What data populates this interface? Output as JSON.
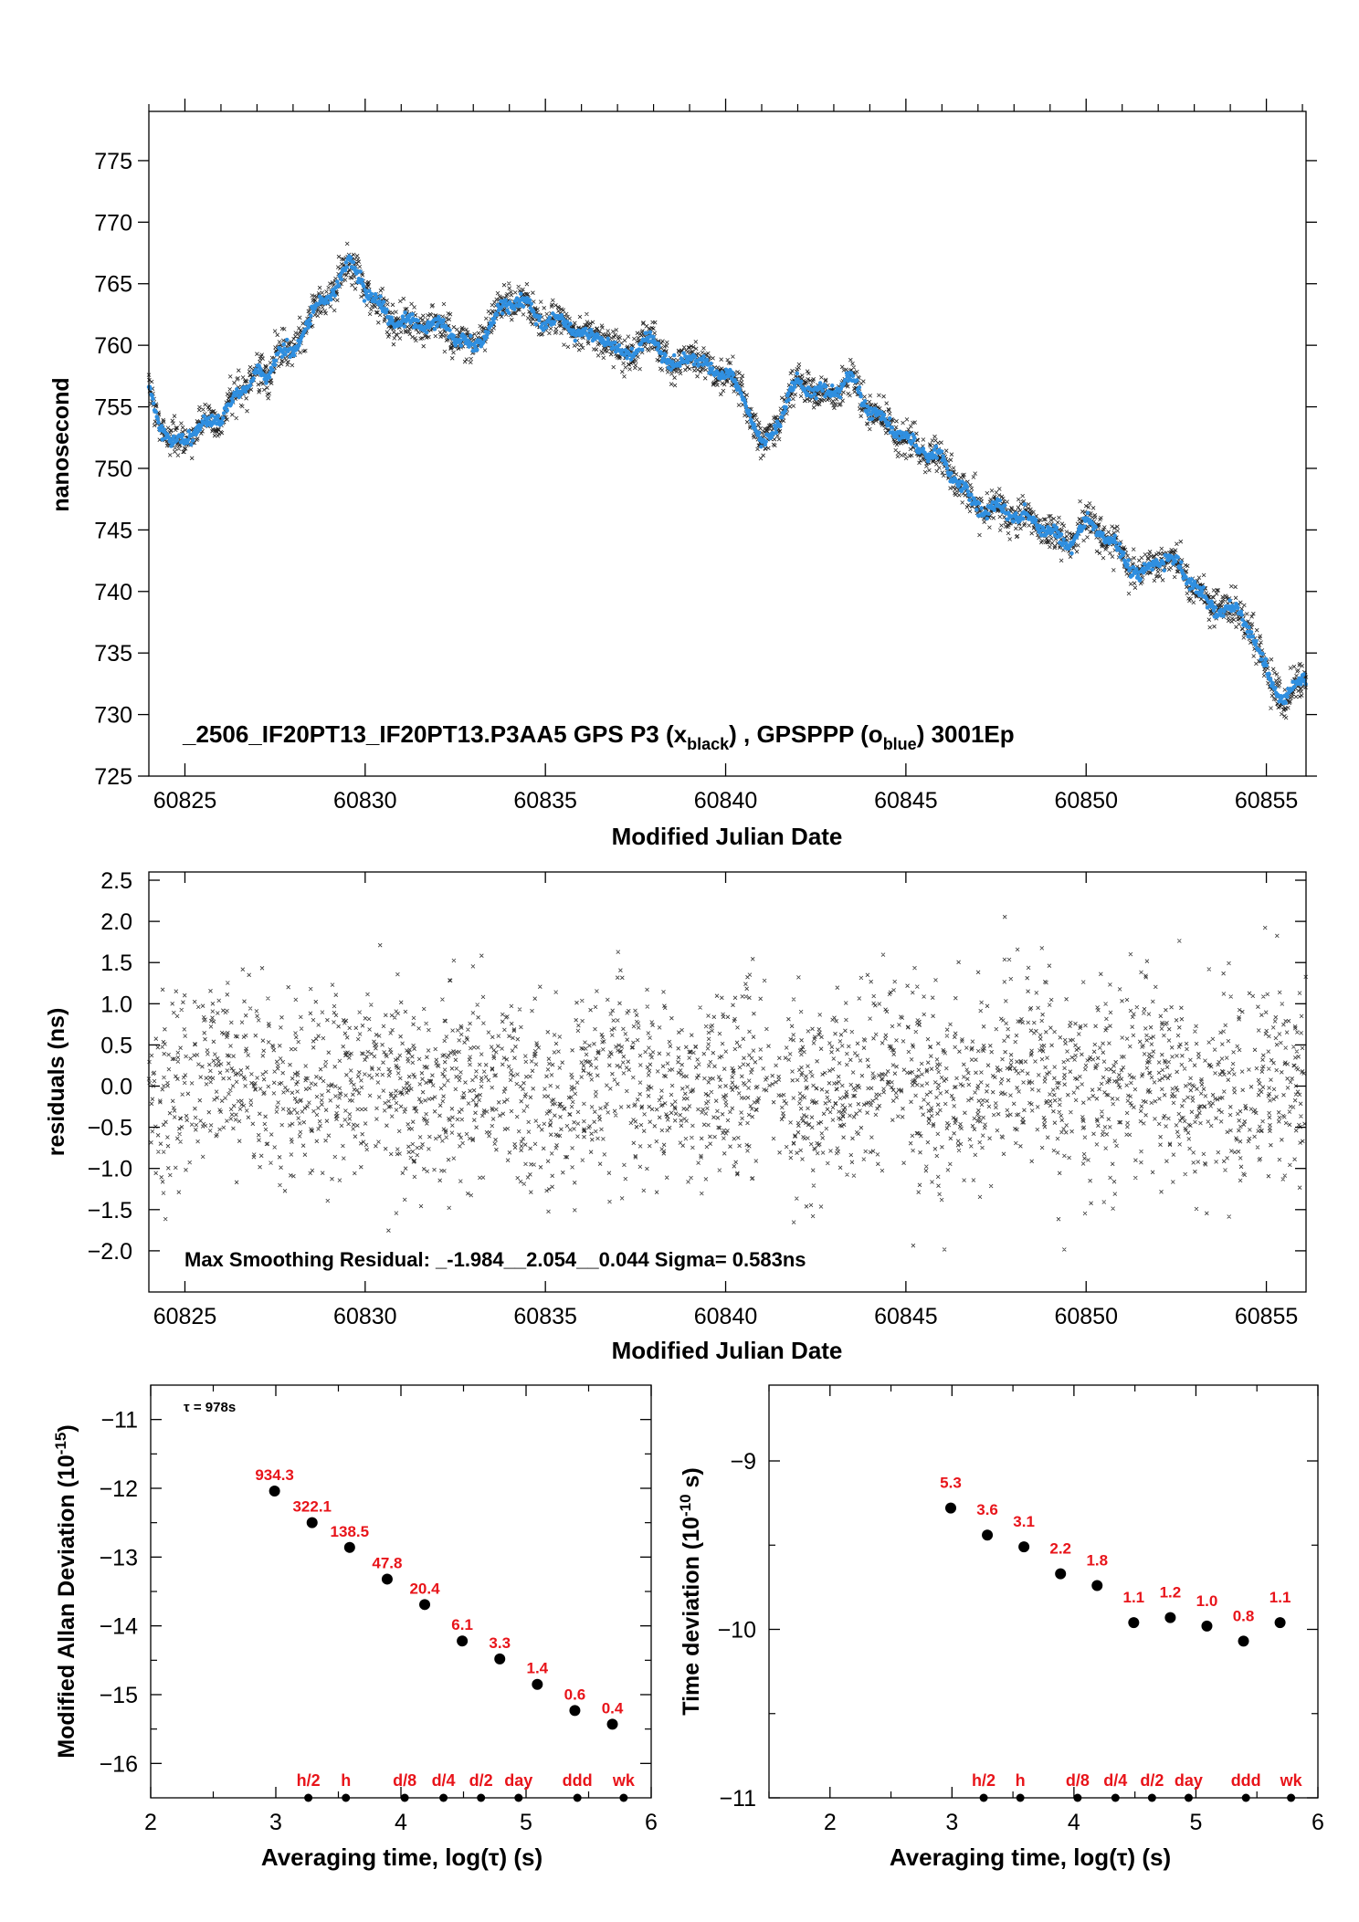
{
  "chart_data": [
    {
      "type": "scatter",
      "title": "_2506_IF20PT13_IF20PT13.P3AA5    GPS P3 (x",
      "title_sub_black": "black",
      "title_mid": ") ,  GPSPPP (o",
      "title_sub_blue": "blue",
      "title_tail": ")  3001Ep",
      "xlabel": "Modified Julian Date",
      "ylabel": "nanosecond",
      "xlim": [
        60824,
        60856.1
      ],
      "ylim": [
        725,
        779
      ],
      "xticks": [
        60825,
        60830,
        60835,
        60840,
        60845,
        60850,
        60855
      ],
      "yticks": [
        725,
        730,
        735,
        740,
        745,
        750,
        755,
        760,
        765,
        770,
        775
      ],
      "series": [
        {
          "name": "GPS P3",
          "marker": "x",
          "color": "#000000"
        },
        {
          "name": "GPSPPP",
          "marker": "o",
          "color": "#2f8fe0"
        }
      ],
      "trend": {
        "x": [
          60824.0,
          60824.3,
          60824.6,
          60825.0,
          60825.5,
          60826.0,
          60826.5,
          60827.0,
          60827.3,
          60827.6,
          60828.0,
          60828.5,
          60829.0,
          60829.5,
          60830.0,
          60830.5,
          60831.0,
          60831.5,
          60832.0,
          60832.5,
          60833.0,
          60833.5,
          60834.0,
          60834.5,
          60835.0,
          60835.5,
          60836.0,
          60836.5,
          60837.0,
          60837.5,
          60838.0,
          60838.5,
          60839.0,
          60839.5,
          60840.0,
          60840.5,
          60841.0,
          60841.5,
          60842.0,
          60842.5,
          60843.0,
          60843.5,
          60844.0,
          60844.5,
          60845.0,
          60845.5,
          60846.0,
          60846.5,
          60847.0,
          60847.5,
          60848.0,
          60848.5,
          60849.0,
          60849.5,
          60850.0,
          60850.5,
          60851.0,
          60851.5,
          60852.0,
          60852.5,
          60853.0,
          60853.5,
          60854.0,
          60854.5,
          60855.0,
          60855.5,
          60856.0
        ],
        "y": [
          756,
          754,
          752.5,
          753,
          753,
          753.5,
          756.5,
          758.5,
          757,
          759.5,
          758.5,
          763,
          764.5,
          766.5,
          764,
          763,
          762.5,
          761.5,
          761,
          761,
          760.5,
          761.5,
          763,
          763.5,
          762.5,
          762,
          760,
          761,
          760,
          759.5,
          760,
          758,
          760,
          758,
          757,
          756,
          752.5,
          754,
          756.5,
          756,
          757,
          757.5,
          754,
          753.5,
          753,
          751.5,
          750,
          748.5,
          747.5,
          747,
          745.5,
          745.5,
          745.5,
          744,
          745,
          744.5,
          743.5,
          741.5,
          742,
          742,
          741,
          739,
          738,
          737,
          734,
          731.5,
          732.5
        ]
      }
    },
    {
      "type": "scatter",
      "title": "Max Smoothing Residual: _-1.984__2.054__0.044  Sigma= 0.583ns",
      "xlabel": "Modified Julian Date",
      "ylabel": "residuals (ns)",
      "xlim": [
        60824,
        60856.1
      ],
      "ylim": [
        -2.5,
        2.6
      ],
      "xticks": [
        60825,
        60830,
        60835,
        60840,
        60845,
        60850,
        60855
      ],
      "yticks": [
        -2.0,
        -1.5,
        -1.0,
        -0.5,
        0.0,
        0.5,
        1.0,
        1.5,
        2.0,
        2.5
      ],
      "ytick_labels": [
        "−2.0",
        "−1.5",
        "−1.0",
        "−0.5",
        "0.0",
        "0.5",
        "1.0",
        "1.5",
        "2.0",
        "2.5"
      ],
      "min": -1.984,
      "max": 2.054,
      "mean": 0.044,
      "sigma": 0.583
    },
    {
      "type": "scatter",
      "annotation": "τ = 978s",
      "xlabel": "Averaging time, log(τ) (s)",
      "ylabel": "Modified Allan Deviation (10",
      "ylabel_sup": "-15",
      "ylabel_tail": ")",
      "xlim": [
        2,
        6
      ],
      "ylim": [
        -16.5,
        -10.5
      ],
      "xticks": [
        2,
        3,
        4,
        5,
        6
      ],
      "yticks": [
        -16,
        -15,
        -14,
        -13,
        -12,
        -11
      ],
      "ytick_labels": [
        "−16",
        "−15",
        "−14",
        "−13",
        "−12",
        "−11"
      ],
      "x": [
        2.99,
        3.29,
        3.59,
        3.89,
        4.19,
        4.49,
        4.79,
        5.09,
        5.39,
        5.69
      ],
      "y": [
        -12.04,
        -12.5,
        -12.86,
        -13.32,
        -13.69,
        -14.22,
        -14.48,
        -14.85,
        -15.23,
        -15.43
      ],
      "value_labels": [
        "934.3",
        "322.1",
        "138.5",
        "47.8",
        "20.4",
        "6.1",
        "3.3",
        "1.4",
        "0.6",
        "0.4"
      ],
      "marks": {
        "labels": [
          "h/2",
          "h",
          "d/8",
          "d/4",
          "d/2",
          "day",
          "ddd",
          "wk"
        ],
        "x": [
          3.26,
          3.56,
          4.03,
          4.34,
          4.64,
          4.94,
          5.41,
          5.78
        ]
      }
    },
    {
      "type": "scatter",
      "xlabel": "Averaging time, log(τ) (s)",
      "ylabel": "Time deviation (10",
      "ylabel_sup": "-10",
      "ylabel_tail": " s)",
      "xlim": [
        1.5,
        6
      ],
      "ylim": [
        -11,
        -8.55
      ],
      "xticks": [
        2,
        3,
        4,
        5,
        6
      ],
      "yticks": [
        -11,
        -10,
        -9
      ],
      "ytick_labels": [
        "−11",
        "−10",
        "−9"
      ],
      "x": [
        2.99,
        3.29,
        3.59,
        3.89,
        4.19,
        4.49,
        4.79,
        5.09,
        5.39,
        5.69
      ],
      "y": [
        -9.28,
        -9.44,
        -9.51,
        -9.67,
        -9.74,
        -9.96,
        -9.93,
        -9.98,
        -10.07,
        -9.96
      ],
      "value_labels": [
        "5.3",
        "3.6",
        "3.1",
        "2.2",
        "1.8",
        "1.1",
        "1.2",
        "1.0",
        "0.8",
        "1.1"
      ],
      "marks": {
        "labels": [
          "h/2",
          "h",
          "d/8",
          "d/4",
          "d/2",
          "day",
          "ddd",
          "wk"
        ],
        "x": [
          3.26,
          3.56,
          4.03,
          4.34,
          4.64,
          4.94,
          5.41,
          5.78
        ]
      }
    }
  ]
}
